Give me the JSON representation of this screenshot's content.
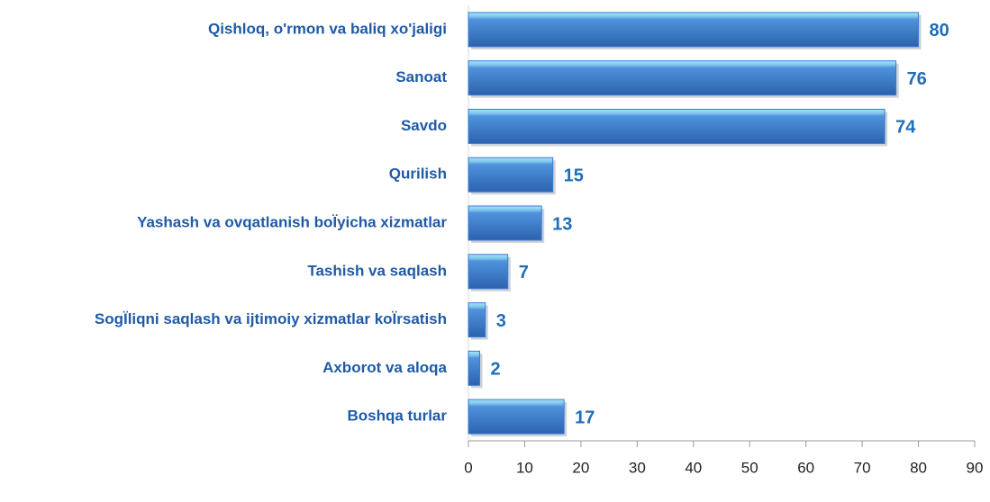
{
  "chart_data": {
    "type": "barh",
    "categories": [
      "Qishloq, o'rmon va baliq xo'jaligi",
      "Sanoat",
      "Savdo",
      "Qurilish",
      "Yashash va ovqatlanish boÏyicha xizmatlar",
      "Tashish va saqlash",
      "SogÏliqni saqlash va ijtimoiy xizmatlar koÏrsatish",
      "Axborot va aloqa",
      "Boshqa turlar"
    ],
    "values": [
      80,
      76,
      74,
      15,
      13,
      7,
      3,
      2,
      17
    ],
    "color": "#3a7bd0",
    "xlim": [
      0,
      90
    ],
    "xticks": [
      0,
      10,
      20,
      30,
      40,
      50,
      60,
      70,
      80,
      90
    ],
    "grid": false
  }
}
